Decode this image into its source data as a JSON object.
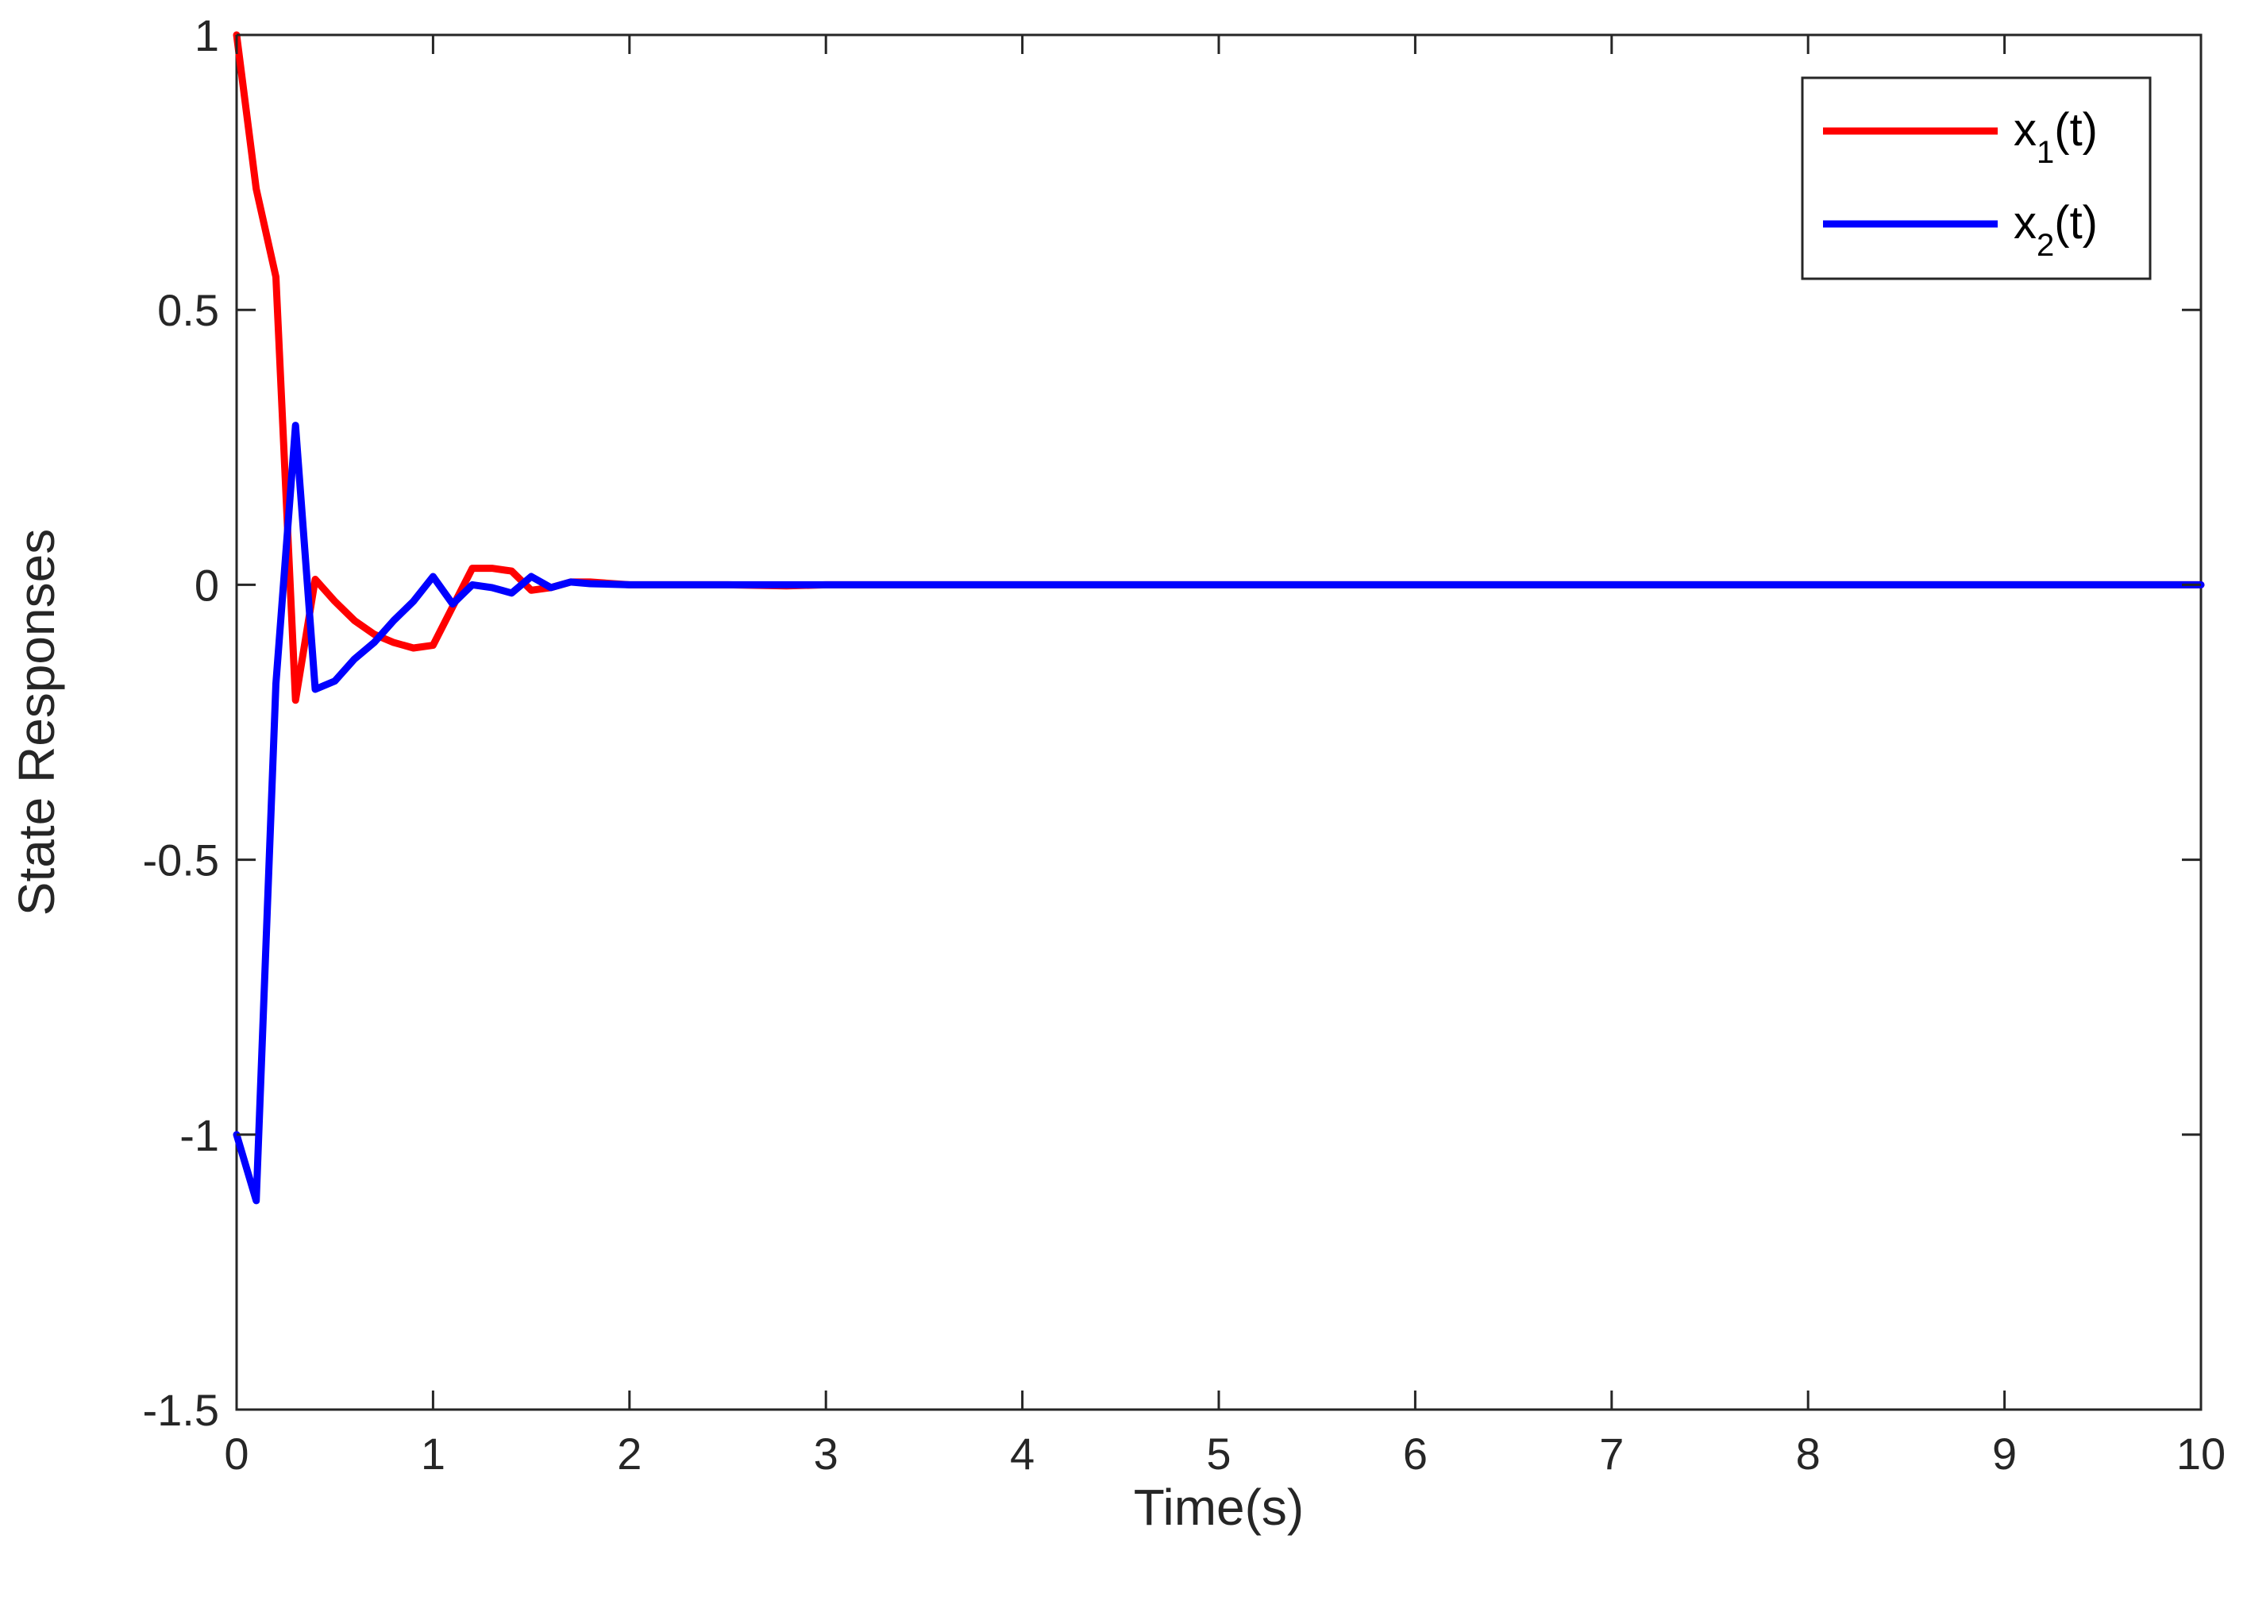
{
  "chart_data": {
    "type": "line",
    "title": "",
    "xlabel": "Time(s)",
    "ylabel": "State Responses",
    "xlim": [
      0,
      10
    ],
    "ylim": [
      -1.5,
      1
    ],
    "xticks": [
      "0",
      "1",
      "2",
      "3",
      "4",
      "5",
      "6",
      "7",
      "8",
      "9",
      "10"
    ],
    "yticks": [
      "-1.5",
      "-1",
      "-0.5",
      "0",
      "0.5",
      "1"
    ],
    "grid": false,
    "legend_position": "top-right",
    "series": [
      {
        "name": "x1(t)",
        "legend_main": "x",
        "legend_sub": "1",
        "legend_tail": "(t)",
        "color": "#ff0000",
        "x": [
          0,
          0.1,
          0.2,
          0.3,
          0.4,
          0.5,
          0.6,
          0.7,
          0.8,
          0.9,
          1.0,
          1.1,
          1.2,
          1.3,
          1.4,
          1.5,
          1.6,
          1.7,
          1.8,
          2.0,
          2.5,
          2.8,
          3.0,
          10
        ],
        "y": [
          1.0,
          0.72,
          0.56,
          -0.21,
          0.01,
          -0.03,
          -0.065,
          -0.09,
          -0.105,
          -0.115,
          -0.11,
          -0.04,
          0.03,
          0.03,
          0.025,
          -0.01,
          -0.005,
          0.005,
          0.005,
          0.0,
          0.0,
          -0.002,
          0.0,
          0.0
        ]
      },
      {
        "name": "x2(t)",
        "legend_main": "x",
        "legend_sub": "2",
        "legend_tail": "(t)",
        "color": "#0000ff",
        "x": [
          0,
          0.1,
          0.2,
          0.3,
          0.4,
          0.5,
          0.6,
          0.7,
          0.8,
          0.9,
          1.0,
          1.1,
          1.2,
          1.3,
          1.4,
          1.5,
          1.6,
          1.7,
          1.8,
          2.0,
          2.5,
          3.0,
          10
        ],
        "y": [
          -1.0,
          -1.12,
          -0.18,
          0.29,
          -0.19,
          -0.175,
          -0.135,
          -0.105,
          -0.065,
          -0.03,
          0.015,
          -0.035,
          0.0,
          -0.005,
          -0.015,
          0.015,
          -0.005,
          0.005,
          0.002,
          0.0,
          0.0,
          0.0,
          0.0
        ]
      }
    ]
  }
}
